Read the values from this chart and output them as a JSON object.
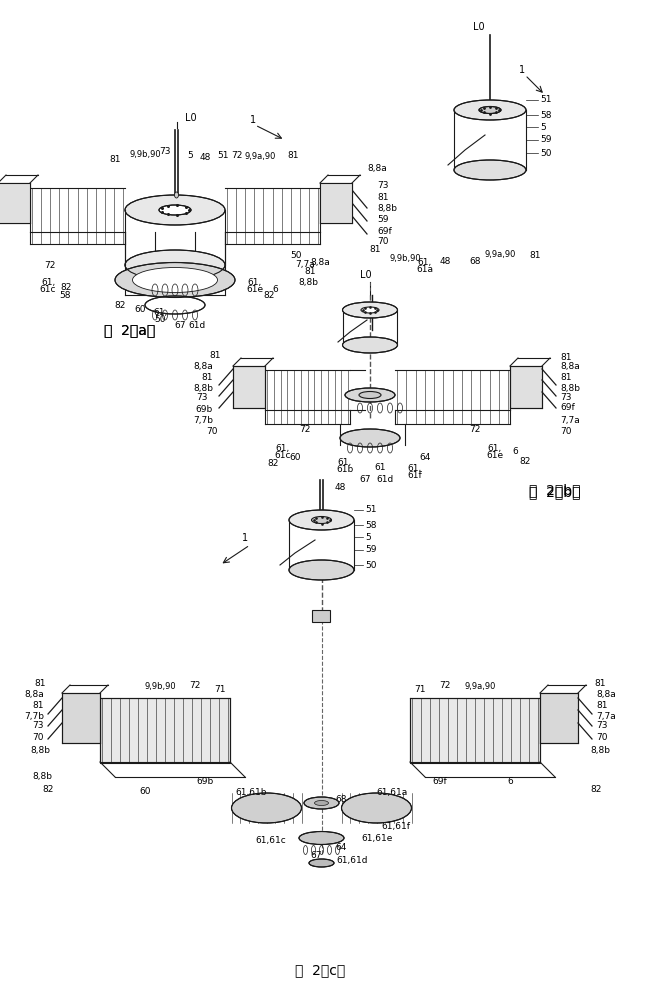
{
  "bg": "#f5f5f0",
  "lc": "#1a1a1a",
  "tc": "#000000",
  "lw": 0.8,
  "fig_width": 6.47,
  "fig_height": 10.0,
  "fig_a_label": "图  2（a）",
  "fig_b_label": "图  2（b）",
  "fig_c_label": "图  2（c）"
}
